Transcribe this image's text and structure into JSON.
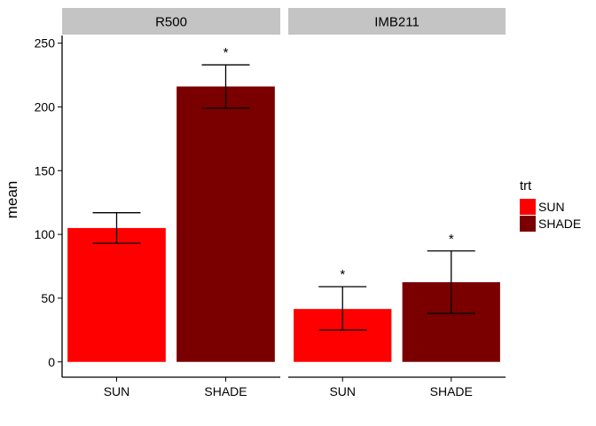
{
  "chart_data": {
    "type": "bar",
    "ylabel": "mean",
    "xlabel": "",
    "ylim": [
      -12,
      256
    ],
    "yticks": [
      0,
      50,
      100,
      150,
      200,
      250
    ],
    "grid": false,
    "legend": {
      "title": "trt",
      "position": "right",
      "entries": [
        {
          "label": "SUN",
          "color": "#ff0000"
        },
        {
          "label": "SHADE",
          "color": "#7a0000"
        }
      ]
    },
    "panels": [
      {
        "name": "R500",
        "categories": [
          "SUN",
          "SHADE"
        ],
        "values": [
          105,
          216
        ],
        "error_low": [
          93,
          199
        ],
        "error_high": [
          117,
          233
        ],
        "annotations": [
          "",
          "*"
        ]
      },
      {
        "name": "IMB211",
        "categories": [
          "SUN",
          "SHADE"
        ],
        "values": [
          41.5,
          62.5
        ],
        "error_low": [
          25,
          38
        ],
        "error_high": [
          59,
          87
        ],
        "annotations": [
          "*",
          "*"
        ]
      }
    ]
  }
}
